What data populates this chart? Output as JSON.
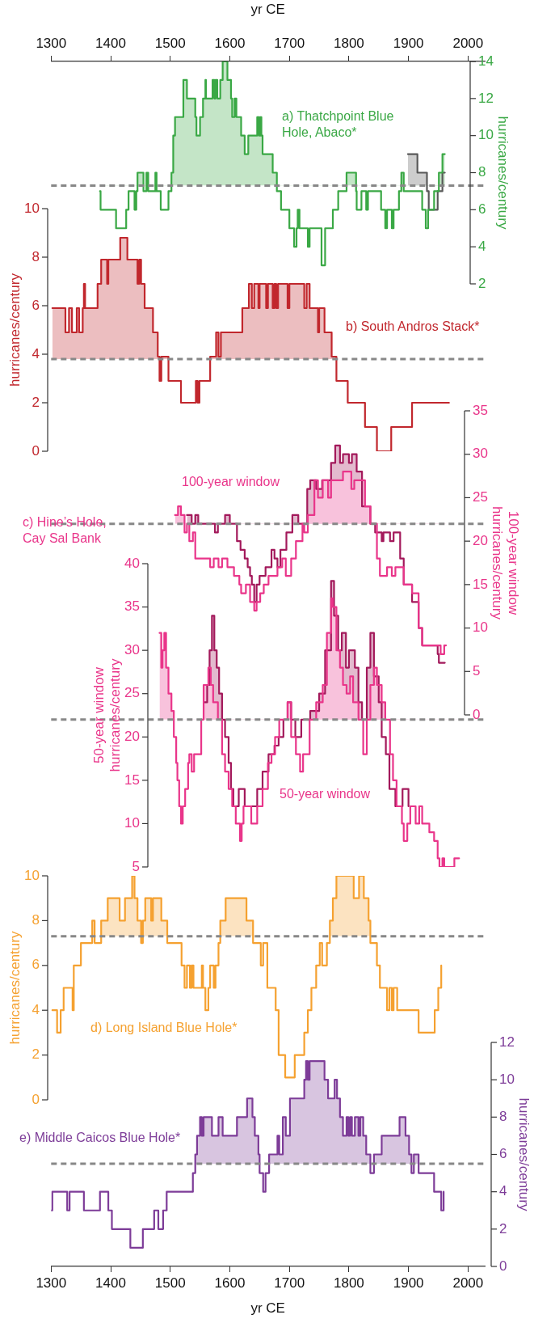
{
  "chart_data": [
    {
      "type": "step",
      "xlabel": "yr CE",
      "y2label": "hurricanes/century",
      "xlim": [
        1300,
        2028
      ],
      "xticks": [
        1300,
        1400,
        1500,
        1600,
        1700,
        1800,
        1900,
        2000
      ],
      "y2lim": [
        2,
        14
      ],
      "y2ticks": [
        2,
        4,
        6,
        8,
        10,
        12,
        14
      ],
      "grid": false,
      "annotations": [
        "a) Thatchpoint Blue Hole, Abaco*"
      ],
      "ref_lines": [
        {
          "axis": "y2",
          "value": 7.3,
          "color": "#888888",
          "line_style": "dashed"
        }
      ],
      "series": [
        {
          "color": "#3aa845",
          "axis": "y2",
          "x": [
            1382,
            1383,
            1409,
            1426,
            1430,
            1440,
            1443,
            1445,
            1455,
            1460,
            1463,
            1475,
            1477,
            1484,
            1497,
            1502,
            1505,
            1508,
            1522,
            1528,
            1542,
            1544,
            1550,
            1555,
            1559,
            1560,
            1571,
            1574,
            1576,
            1579,
            1584,
            1588,
            1596,
            1602,
            1604,
            1608,
            1611,
            1619,
            1625,
            1631,
            1646,
            1649,
            1651,
            1653,
            1655,
            1672,
            1679,
            1686,
            1700,
            1708,
            1712,
            1714,
            1717,
            1731,
            1734,
            1754,
            1760,
            1773,
            1782,
            1796,
            1812,
            1813,
            1821,
            1829,
            1832,
            1854,
            1861,
            1864,
            1872,
            1875,
            1884,
            1888,
            1892,
            1923,
            1929,
            1933,
            1943,
            1951,
            1957,
            1961
          ],
          "values": [
            7,
            6,
            5,
            6,
            7,
            6,
            7,
            8,
            7,
            8,
            7,
            8,
            7,
            6,
            7,
            8,
            10,
            11,
            13,
            12,
            11,
            10,
            11,
            12,
            13,
            12,
            13,
            12,
            13,
            12,
            13,
            14,
            13,
            12,
            11,
            12,
            11,
            10,
            9,
            10,
            11,
            10,
            11,
            10,
            9,
            8,
            7,
            6,
            5,
            4,
            5,
            6,
            5,
            4,
            5,
            3,
            5,
            6,
            7,
            8,
            7,
            6,
            7,
            6,
            7,
            6,
            5,
            6,
            5,
            6,
            7,
            8,
            7,
            6,
            5,
            6,
            7,
            8,
            9,
            9
          ]
        },
        {
          "color": "#595959",
          "axis": "y2",
          "x": [
            1899,
            1915,
            1931,
            1934,
            1949,
            1957,
            1961
          ],
          "values": [
            9,
            8,
            7,
            6,
            7,
            8,
            8
          ]
        }
      ]
    },
    {
      "type": "step",
      "ylabel": "hurricanes/century",
      "xlim": [
        1300,
        2028
      ],
      "ylim": [
        0,
        10
      ],
      "yticks": [
        0,
        2,
        4,
        6,
        8,
        10
      ],
      "grid": false,
      "tick_labels": "y",
      "annotations": [
        "b) South Andros Stack*"
      ],
      "ref_lines": [
        {
          "axis": "y",
          "value": 3.8,
          "color": "#888888",
          "line_style": "dashed"
        }
      ],
      "series": [
        {
          "color": "#c1272d",
          "x": [
            1302,
            1324,
            1330,
            1335,
            1343,
            1347,
            1353,
            1355,
            1357,
            1378,
            1384,
            1394,
            1396,
            1416,
            1428,
            1445,
            1448,
            1451,
            1457,
            1471,
            1479,
            1482,
            1485,
            1497,
            1518,
            1543,
            1546,
            1549,
            1567,
            1577,
            1581,
            1585,
            1621,
            1632,
            1637,
            1641,
            1648,
            1650,
            1661,
            1664,
            1672,
            1675,
            1678,
            1681,
            1697,
            1700,
            1725,
            1729,
            1734,
            1748,
            1750,
            1759,
            1771,
            1779,
            1798,
            1827,
            1847,
            1871,
            1906,
            1968
          ],
          "values": [
            5.9,
            4.9,
            5.9,
            4.9,
            5.9,
            4.9,
            5.9,
            6.9,
            5.9,
            6.9,
            7.9,
            6.9,
            7.9,
            8.8,
            7.9,
            6.9,
            7.9,
            6.9,
            5.9,
            4.9,
            3.9,
            2.9,
            3.9,
            2.9,
            2.0,
            2.9,
            2.0,
            2.9,
            3.9,
            4.9,
            3.9,
            4.9,
            5.9,
            6.9,
            5.9,
            6.9,
            5.9,
            6.9,
            5.9,
            6.9,
            5.9,
            6.9,
            5.9,
            6.9,
            5.9,
            6.9,
            5.9,
            6.9,
            5.9,
            4.9,
            5.9,
            4.9,
            3.9,
            2.9,
            2.0,
            1.0,
            0,
            1.0,
            2.0,
            2.0
          ]
        }
      ]
    },
    {
      "type": "step",
      "y2label": "100-year window hurricanes/century",
      "xlim": [
        1300,
        2028
      ],
      "y2lim": [
        0,
        35
      ],
      "y2ticks": [
        0,
        5,
        10,
        15,
        20,
        25,
        30,
        35
      ],
      "grid": false,
      "tick_labels": "y",
      "annotations": [
        "c) Hine’s Hole, Cay Sal Bank",
        "100-year window"
      ],
      "ref_lines": [
        {
          "axis": "y2",
          "value": 22,
          "color": "#888888",
          "line_style": "dashed"
        }
      ],
      "series": [
        {
          "color": "#e9358a",
          "axis": "y2",
          "x": [
            1508,
            1513,
            1518,
            1524,
            1528,
            1532,
            1538,
            1542,
            1567,
            1573,
            1581,
            1587,
            1596,
            1607,
            1616,
            1619,
            1627,
            1634,
            1641,
            1645,
            1651,
            1657,
            1665,
            1680,
            1688,
            1694,
            1703,
            1711,
            1722,
            1725,
            1731,
            1742,
            1748,
            1756,
            1765,
            1770,
            1790,
            1804,
            1809,
            1827,
            1836,
            1847,
            1852,
            1864,
            1872,
            1878,
            1892,
            1906,
            1917,
            1923,
            1954,
            1960,
            1963
          ],
          "values": [
            23,
            24,
            23,
            21,
            22,
            20,
            21,
            18,
            17,
            18,
            17,
            18,
            17,
            16,
            15,
            14,
            15,
            13,
            12,
            13,
            14,
            15,
            16,
            17,
            18,
            16,
            18,
            20,
            22,
            21,
            23,
            27,
            25,
            27,
            25,
            27,
            28,
            26,
            27,
            24,
            22,
            18,
            16,
            17,
            16,
            17,
            15,
            14,
            10,
            8,
            7,
            8,
            8
          ]
        },
        {
          "color": "#a3195b",
          "axis": "y2",
          "x": [
            1528,
            1536,
            1542,
            1547,
            1575,
            1580,
            1592,
            1600,
            1612,
            1618,
            1625,
            1630,
            1634,
            1637,
            1641,
            1645,
            1650,
            1660,
            1670,
            1675,
            1680,
            1685,
            1695,
            1705,
            1715,
            1730,
            1735,
            1745,
            1755,
            1770,
            1777,
            1785,
            1790,
            1800,
            1805,
            1813,
            1822,
            1836,
            1844,
            1855,
            1858,
            1869,
            1875,
            1886,
            1892,
            1906,
            1917,
            1923,
            1949,
            1951,
            1961
          ],
          "values": [
            23,
            22,
            23,
            22,
            21,
            22,
            23,
            22,
            20,
            19,
            18,
            17,
            16,
            15,
            13,
            15,
            16,
            17,
            19,
            18,
            17,
            19,
            21,
            23,
            22,
            26,
            27,
            26,
            27,
            29,
            31,
            29,
            30,
            29,
            30,
            28,
            24,
            22,
            21,
            20,
            21,
            20,
            21,
            18,
            15,
            13,
            10,
            8,
            7,
            6,
            6
          ]
        }
      ]
    },
    {
      "type": "step",
      "ylabel": "50-year window hurricanes/century",
      "xlim": [
        1300,
        2028
      ],
      "ylim": [
        5,
        40
      ],
      "yticks": [
        5,
        10,
        15,
        20,
        25,
        30,
        35,
        40
      ],
      "grid": false,
      "tick_labels": "y",
      "annotations": [
        "50-year window"
      ],
      "ref_lines": [
        {
          "axis": "y",
          "value": 22,
          "color": "#888888",
          "line_style": "dashed"
        }
      ],
      "series": [
        {
          "color": "#e9358a",
          "x": [
            1482,
            1485,
            1487,
            1490,
            1493,
            1497,
            1502,
            1506,
            1510,
            1512,
            1515,
            1518,
            1521,
            1525,
            1530,
            1532,
            1536,
            1540,
            1552,
            1556,
            1564,
            1568,
            1572,
            1580,
            1587,
            1592,
            1598,
            1604,
            1610,
            1617,
            1620,
            1623,
            1636,
            1646,
            1655,
            1664,
            1670,
            1676,
            1683,
            1697,
            1703,
            1711,
            1718,
            1723,
            1734,
            1745,
            1756,
            1763,
            1770,
            1773,
            1779,
            1785,
            1790,
            1796,
            1802,
            1807,
            1816,
            1824,
            1830,
            1836,
            1842,
            1847,
            1855,
            1861,
            1869,
            1874,
            1880,
            1889,
            1892,
            1898,
            1903,
            1912,
            1918,
            1923,
            1935,
            1943,
            1949,
            1952,
            1957,
            1960,
            1977,
            1985
          ],
          "values": [
            32,
            28,
            30,
            32,
            28,
            25,
            23,
            20,
            17,
            15,
            12,
            10,
            12,
            14,
            17,
            18,
            16,
            18,
            22,
            26,
            28,
            26,
            24,
            22,
            18,
            16,
            14,
            12,
            10,
            8,
            10,
            12,
            10,
            12,
            14,
            17,
            18,
            20,
            22,
            24,
            20,
            18,
            16,
            18,
            22,
            24,
            26,
            32,
            36,
            35,
            30,
            28,
            26,
            25,
            27,
            24,
            22,
            18,
            22,
            26,
            28,
            26,
            24,
            22,
            18,
            15,
            12,
            10,
            8,
            10,
            12,
            10,
            12,
            10,
            9,
            8,
            6,
            5,
            6,
            5,
            6,
            6
          ]
        },
        {
          "color": "#a3195b",
          "x": [
            1556,
            1562,
            1566,
            1570,
            1574,
            1578,
            1582,
            1587,
            1592,
            1598,
            1602,
            1606,
            1615,
            1625,
            1646,
            1655,
            1665,
            1675,
            1682,
            1690,
            1697,
            1703,
            1710,
            1720,
            1735,
            1750,
            1760,
            1770,
            1775,
            1782,
            1788,
            1795,
            1800,
            1810,
            1816,
            1822,
            1830,
            1836,
            1842,
            1850,
            1855,
            1862,
            1868,
            1878,
            1890,
            1900
          ],
          "values": [
            24,
            26,
            30,
            34,
            30,
            28,
            25,
            22,
            20,
            17,
            14,
            12,
            14,
            12,
            14,
            16,
            18,
            19,
            20,
            22,
            24,
            22,
            20,
            22,
            23,
            25,
            30,
            38,
            34,
            30,
            32,
            28,
            30,
            28,
            24,
            22,
            28,
            32,
            27,
            24,
            20,
            18,
            14,
            12,
            14,
            12
          ]
        }
      ]
    },
    {
      "type": "step",
      "ylabel": "hurricanes/century",
      "xlim": [
        1300,
        2028
      ],
      "ylim": [
        0,
        10
      ],
      "yticks": [
        0,
        2,
        4,
        6,
        8,
        10
      ],
      "grid": false,
      "tick_labels": "y",
      "annotations": [
        "d) Long Island Blue Hole*"
      ],
      "ref_lines": [
        {
          "axis": "y",
          "value": 7.3,
          "color": "#888888",
          "line_style": "dashed"
        }
      ],
      "series": [
        {
          "color": "#f5a130",
          "x": [
            1302,
            1310,
            1316,
            1321,
            1336,
            1338,
            1350,
            1369,
            1373,
            1384,
            1395,
            1415,
            1424,
            1436,
            1440,
            1445,
            1451,
            1454,
            1458,
            1468,
            1471,
            1485,
            1495,
            1519,
            1524,
            1528,
            1533,
            1536,
            1539,
            1553,
            1555,
            1559,
            1564,
            1567,
            1573,
            1576,
            1581,
            1584,
            1593,
            1628,
            1639,
            1652,
            1656,
            1663,
            1677,
            1682,
            1693,
            1709,
            1725,
            1731,
            1737,
            1745,
            1751,
            1755,
            1763,
            1768,
            1773,
            1779,
            1808,
            1817,
            1825,
            1833,
            1836,
            1847,
            1852,
            1864,
            1868,
            1872,
            1875,
            1881,
            1917,
            1944,
            1950,
            1955
          ],
          "values": [
            4,
            3,
            4,
            5,
            4,
            6,
            7,
            8,
            7,
            8,
            9,
            8,
            9,
            10,
            9,
            8,
            7,
            8,
            9,
            8,
            9,
            8,
            7,
            6,
            5,
            6,
            5,
            6,
            5,
            6,
            5,
            4,
            5,
            6,
            5,
            6,
            7,
            8,
            9,
            8,
            7,
            6,
            7,
            5,
            4,
            2,
            1,
            2,
            3,
            4,
            5,
            6,
            7,
            6,
            7,
            8,
            9,
            10,
            9,
            10,
            9,
            8,
            7,
            6,
            5,
            4,
            5,
            4,
            5,
            4,
            3,
            4,
            5,
            6
          ]
        }
      ]
    },
    {
      "type": "step",
      "xlabel": "yr CE",
      "y2label": "hurricanes/century",
      "xlim": [
        1300,
        2028
      ],
      "xticks": [
        1300,
        1400,
        1500,
        1600,
        1700,
        1800,
        1900,
        2000
      ],
      "y2lim": [
        0,
        12
      ],
      "y2ticks": [
        0,
        2,
        4,
        6,
        8,
        10,
        12
      ],
      "grid": false,
      "annotations": [
        "e) Middle Caicos Blue Hole*"
      ],
      "ref_lines": [
        {
          "axis": "y2",
          "value": 5.5,
          "color": "#888888",
          "line_style": "dashed"
        }
      ],
      "series": [
        {
          "color": "#7d3c98",
          "axis": "y2",
          "x": [
            1300,
            1302,
            1327,
            1331,
            1355,
            1382,
            1396,
            1402,
            1433,
            1454,
            1473,
            1480,
            1488,
            1494,
            1538,
            1542,
            1545,
            1550,
            1553,
            1556,
            1570,
            1581,
            1588,
            1612,
            1629,
            1638,
            1642,
            1648,
            1650,
            1656,
            1660,
            1666,
            1680,
            1683,
            1689,
            1694,
            1701,
            1725,
            1728,
            1731,
            1734,
            1759,
            1765,
            1776,
            1780,
            1785,
            1790,
            1796,
            1799,
            1802,
            1805,
            1810,
            1816,
            1819,
            1824,
            1829,
            1836,
            1842,
            1855,
            1885,
            1895,
            1901,
            1905,
            1909,
            1917,
            1943,
            1955,
            1959
          ],
          "values": [
            3,
            4,
            3,
            4,
            3,
            4,
            3,
            2,
            1,
            2,
            3,
            2,
            3,
            4,
            5,
            6,
            7,
            8,
            7,
            8,
            7,
            8,
            7,
            8,
            9,
            8,
            7,
            6,
            5,
            4,
            5,
            6,
            7,
            6,
            8,
            7,
            9,
            10,
            11,
            10,
            11,
            10,
            9,
            10,
            9,
            8,
            7,
            8,
            7,
            8,
            7,
            8,
            7,
            8,
            7,
            6,
            5,
            6,
            7,
            8,
            7,
            6,
            5,
            6,
            5,
            4,
            3,
            4
          ]
        }
      ]
    }
  ]
}
